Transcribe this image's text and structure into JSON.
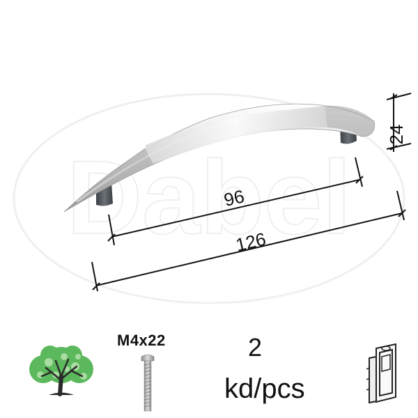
{
  "watermark": "Dabel",
  "dimensions": {
    "height": "24",
    "hole_spacing": "96",
    "total_length": "126"
  },
  "screw": {
    "label": "M4x22"
  },
  "quantity": {
    "value": "2",
    "unit": "kd/pcs"
  },
  "icons": {
    "tree": "tree-icon",
    "screw": "screw-icon",
    "package": "blister-pack-icon"
  },
  "colors": {
    "chrome_light": "#f4f4f4",
    "chrome_mid": "#c9c9c9",
    "chrome_dark": "#8a8a8a",
    "leg": "#555b60",
    "leaf_green": "#5cb85c",
    "leaf_light": "#a8dca0",
    "trunk": "#2a2a2a"
  }
}
